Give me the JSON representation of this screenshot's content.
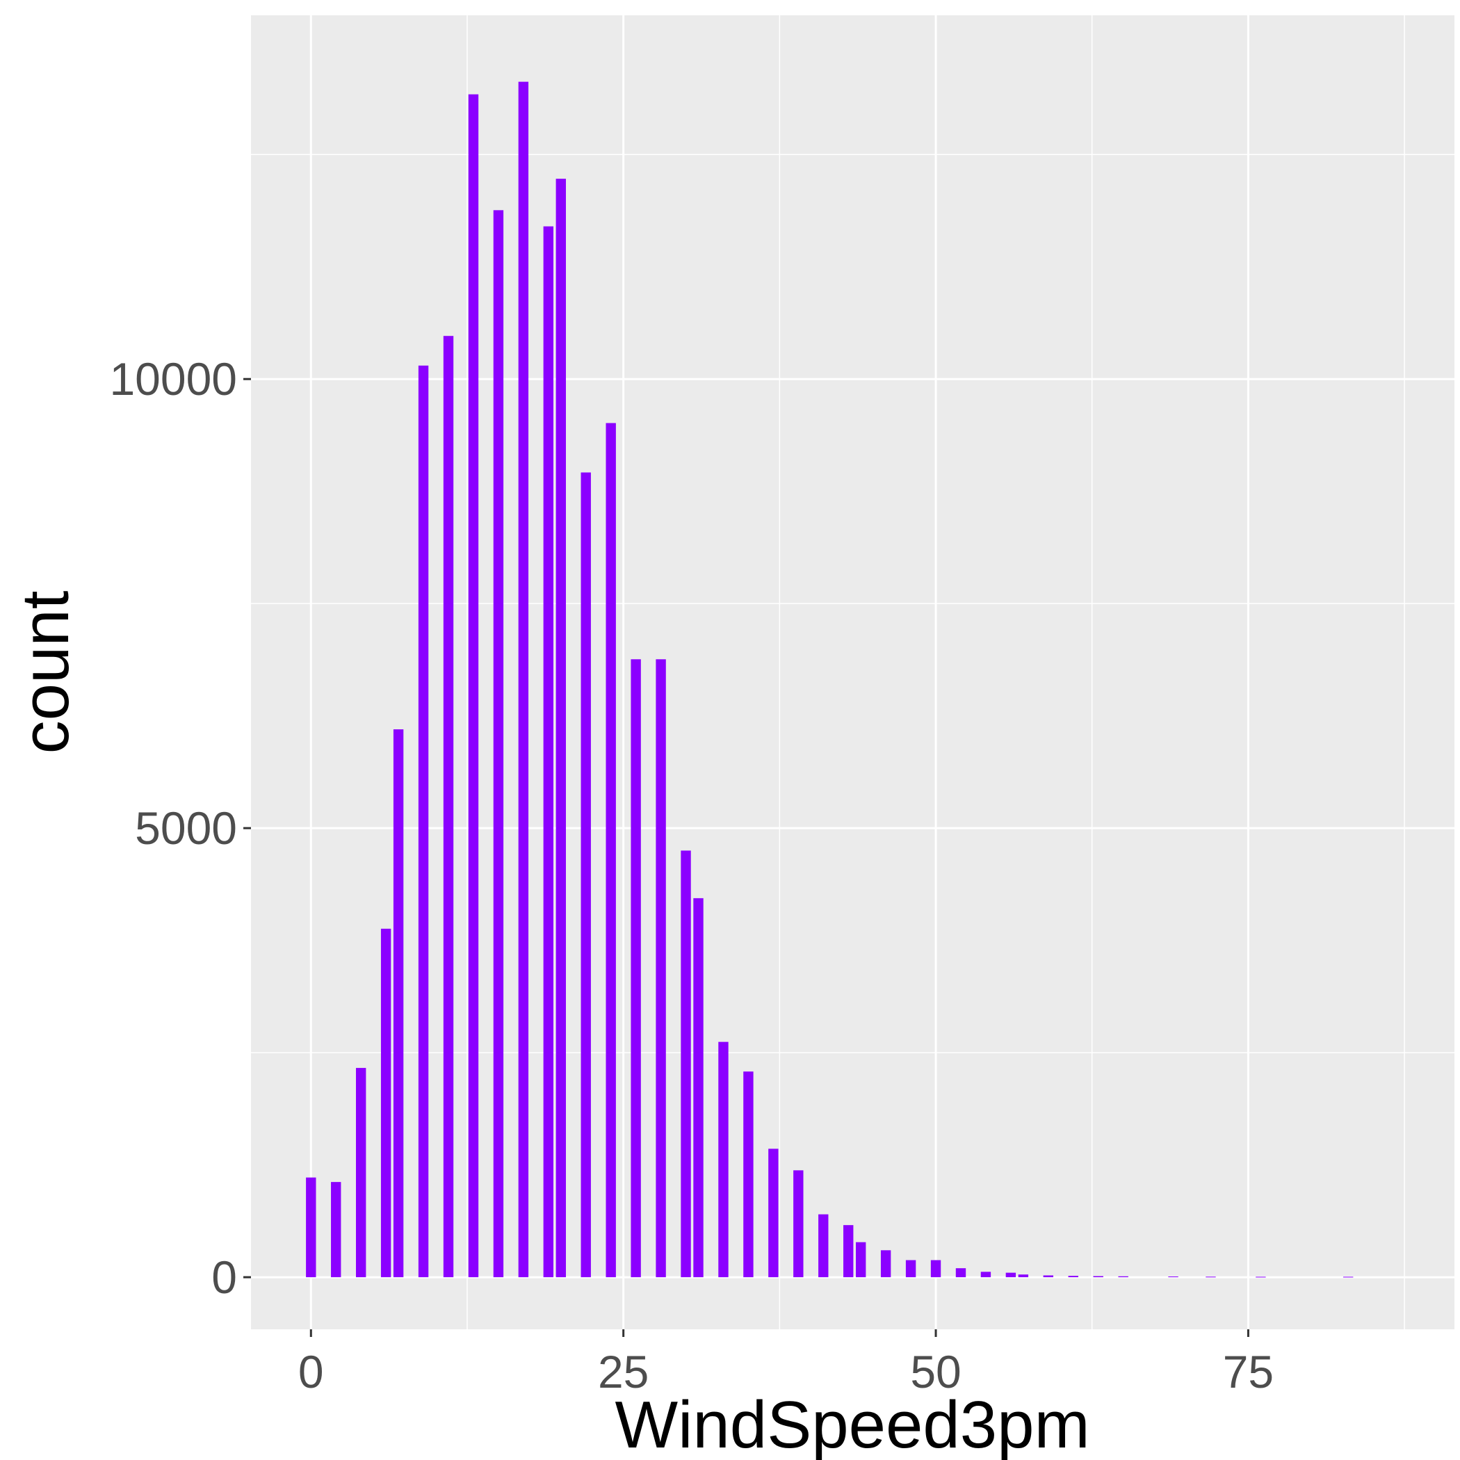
{
  "chart_data": {
    "type": "bar",
    "xlabel": "WindSpeed3pm",
    "ylabel": "count",
    "xlim": [
      -4.8,
      91.5
    ],
    "ylim": [
      -580,
      14050
    ],
    "x_ticks": [
      0,
      25,
      50,
      75
    ],
    "y_ticks": [
      0,
      5000,
      10000
    ],
    "x_minor_grid": [
      12.5,
      37.5,
      62.5,
      87.5
    ],
    "y_minor_grid": [
      2500,
      7500,
      12500
    ],
    "grid": true,
    "legend": "none",
    "bar_color": "#8b00ff",
    "panel_color": "#ebebeb",
    "grid_color": "#ffffff",
    "bar_width": 0.8,
    "x": [
      0,
      2,
      4,
      6,
      7,
      9,
      11,
      13,
      15,
      17,
      19,
      20,
      22,
      24,
      26,
      28,
      30,
      31,
      33,
      35,
      37,
      39,
      41,
      43,
      44,
      46,
      48,
      50,
      52,
      54,
      56,
      57,
      59,
      61,
      63,
      65,
      69,
      72,
      76,
      83
    ],
    "values": [
      1110,
      1060,
      2330,
      3880,
      6100,
      10150,
      10480,
      13170,
      11880,
      13310,
      11700,
      12230,
      8960,
      9510,
      6880,
      6880,
      4750,
      4220,
      2620,
      2290,
      1430,
      1190,
      700,
      580,
      390,
      300,
      190,
      190,
      100,
      60,
      50,
      30,
      20,
      15,
      12,
      10,
      8,
      6,
      5,
      5
    ]
  }
}
